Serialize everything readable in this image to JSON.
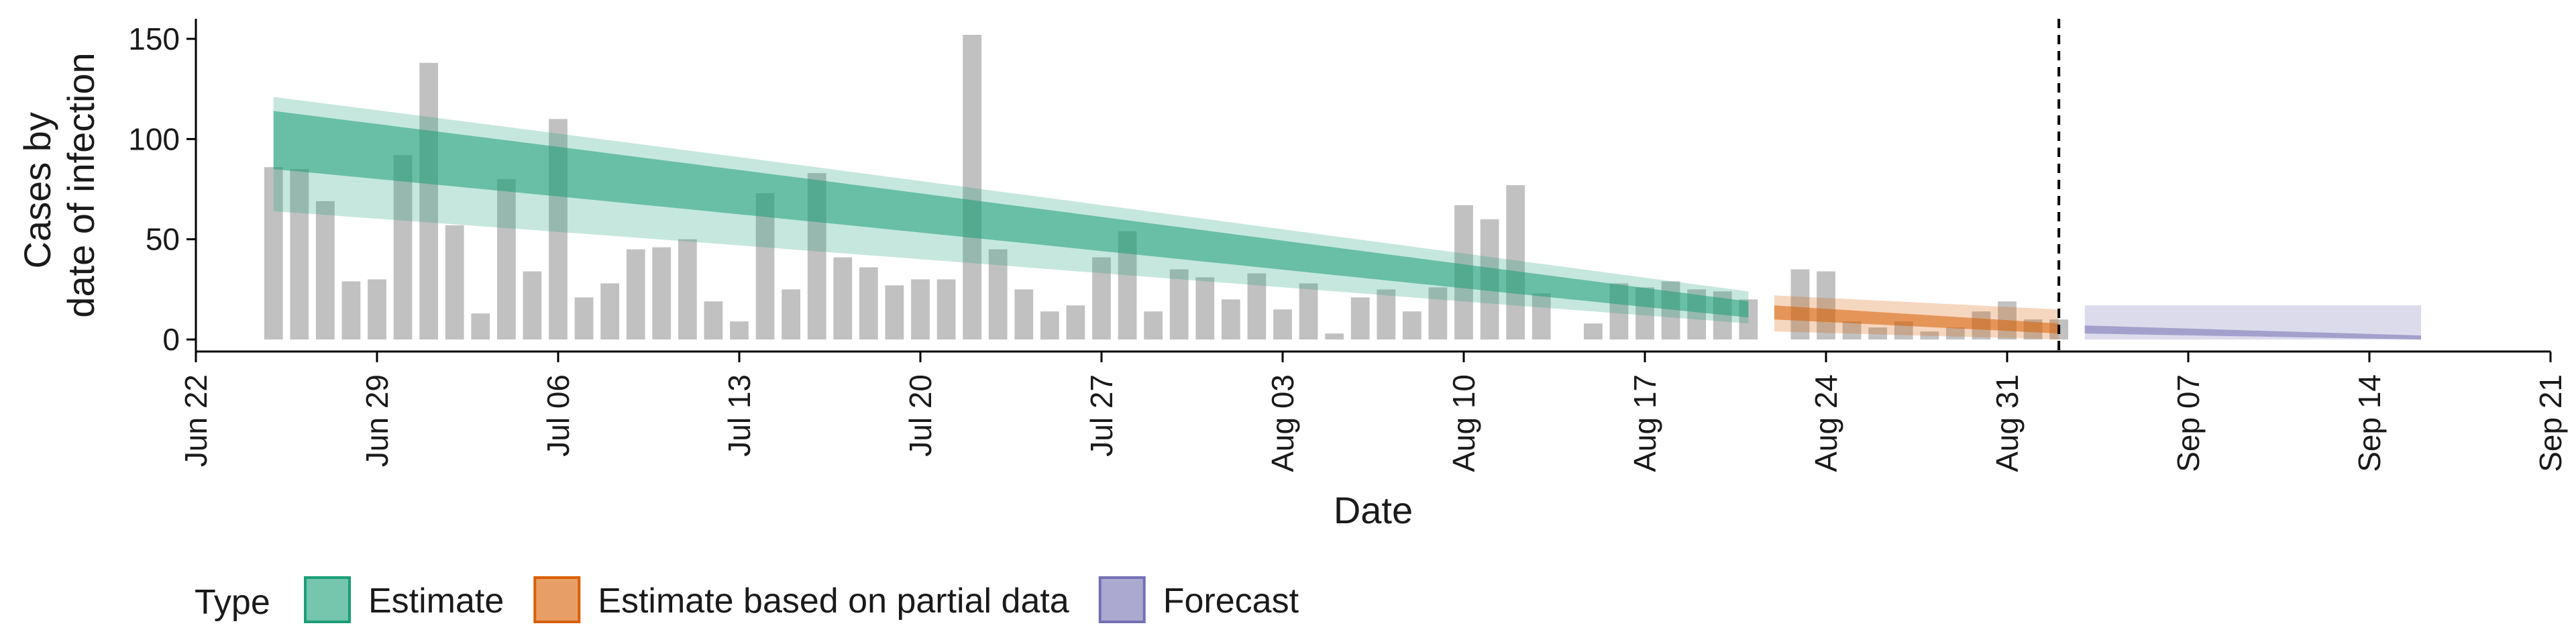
{
  "chart_data": {
    "type": "bar",
    "xlabel": "Date",
    "ylabel_lines": [
      "Cases by",
      "date of infection"
    ],
    "x_ticks": [
      "2020-06-22",
      "2020-06-29",
      "2020-07-06",
      "2020-07-13",
      "2020-07-20",
      "2020-07-27",
      "2020-08-03",
      "2020-08-10",
      "2020-08-17",
      "2020-08-24",
      "2020-08-31",
      "2020-09-07",
      "2020-09-14",
      "2020-09-21"
    ],
    "x_tick_labels": [
      "Jun 22",
      "Jun 29",
      "Jul 06",
      "Jul 13",
      "Jul 20",
      "Jul 27",
      "Aug 03",
      "Aug 10",
      "Aug 17",
      "Aug 24",
      "Aug 31",
      "Sep 07",
      "Sep 14",
      "Sep 21"
    ],
    "xlim": [
      "2020-06-22",
      "2020-09-21"
    ],
    "y_ticks": [
      0,
      50,
      100,
      150
    ],
    "ylim": [
      -6,
      160
    ],
    "grid": false,
    "forecast_date": "2020-09-02",
    "reported_cases": {
      "start_date": "2020-06-25",
      "values": [
        86,
        85,
        69,
        29,
        30,
        92,
        138,
        57,
        13,
        80,
        34,
        110,
        21,
        28,
        45,
        46,
        50,
        19,
        9,
        73,
        25,
        83,
        41,
        36,
        27,
        30,
        30,
        152,
        45,
        25,
        14,
        17,
        41,
        54,
        14,
        35,
        31,
        20,
        33,
        15,
        28,
        3,
        21,
        25,
        14,
        26,
        67,
        60,
        77,
        23,
        0,
        8,
        28,
        26,
        29,
        25,
        24,
        20,
        0,
        35,
        34,
        9,
        6,
        9,
        4,
        6,
        14,
        19,
        10,
        10
      ]
    },
    "series": [
      {
        "name": "Estimate",
        "color": "#1B9E77",
        "start_date": "2020-06-25",
        "end_date": "2020-08-21",
        "median": [
          100,
          15
        ],
        "inner": [
          [
            85,
            114
          ],
          [
            11,
            19
          ]
        ],
        "outer": [
          [
            64,
            121
          ],
          [
            8,
            24
          ]
        ]
      },
      {
        "name": "Estimate based on partial data",
        "color": "#D95F02",
        "start_date": "2020-08-22",
        "end_date": "2020-09-02",
        "median": [
          14,
          6
        ],
        "inner": [
          [
            10,
            17
          ],
          [
            3,
            8
          ]
        ],
        "outer": [
          [
            4,
            22
          ],
          [
            0,
            15
          ]
        ]
      },
      {
        "name": "Forecast",
        "color": "#7570B3",
        "start_date": "2020-09-03",
        "end_date": "2020-09-16",
        "median": [
          5,
          1
        ],
        "inner": [
          [
            3,
            7
          ],
          [
            0,
            2
          ]
        ],
        "outer": [
          [
            0,
            17
          ],
          [
            0,
            17
          ]
        ]
      }
    ],
    "legend": {
      "title": "Type",
      "position": "bottom",
      "entries": [
        "Estimate",
        "Estimate based on partial data",
        "Forecast"
      ]
    }
  }
}
